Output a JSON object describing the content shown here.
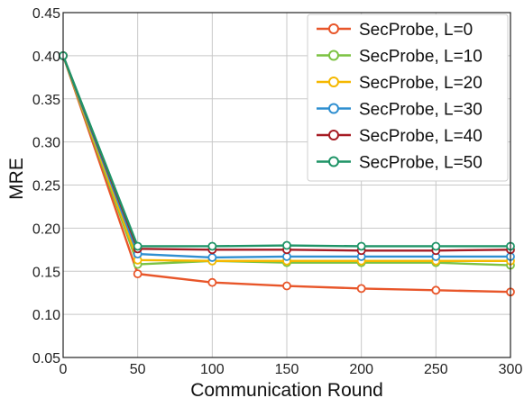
{
  "chart_data": {
    "type": "line",
    "title": "",
    "xlabel": "Communication Round",
    "ylabel": "MRE",
    "x": [
      0,
      50,
      100,
      150,
      200,
      250,
      300
    ],
    "xlim": [
      0,
      300
    ],
    "ylim": [
      0.05,
      0.45
    ],
    "xticks": [
      "0",
      "50",
      "100",
      "150",
      "200",
      "250",
      "300"
    ],
    "yticks": [
      "0.05",
      "0.10",
      "0.15",
      "0.20",
      "0.25",
      "0.30",
      "0.35",
      "0.40",
      "0.45"
    ],
    "grid": true,
    "legend_position": "top-right",
    "series": [
      {
        "name": "SecProbe, L=0",
        "color": "#e8562a",
        "values": [
          0.4,
          0.147,
          0.137,
          0.133,
          0.13,
          0.128,
          0.126
        ]
      },
      {
        "name": "SecProbe, L=10",
        "color": "#7cc242",
        "values": [
          0.4,
          0.158,
          0.162,
          0.16,
          0.16,
          0.16,
          0.157
        ]
      },
      {
        "name": "SecProbe, L=20",
        "color": "#f5b800",
        "values": [
          0.4,
          0.163,
          0.162,
          0.162,
          0.162,
          0.162,
          0.162
        ]
      },
      {
        "name": "SecProbe, L=30",
        "color": "#2f8fd0",
        "values": [
          0.4,
          0.17,
          0.166,
          0.167,
          0.167,
          0.167,
          0.167
        ]
      },
      {
        "name": "SecProbe, L=40",
        "color": "#a61c24",
        "values": [
          0.4,
          0.176,
          0.175,
          0.175,
          0.174,
          0.174,
          0.175
        ]
      },
      {
        "name": "SecProbe, L=50",
        "color": "#1f9467",
        "values": [
          0.4,
          0.179,
          0.179,
          0.18,
          0.179,
          0.179,
          0.179
        ]
      }
    ]
  }
}
